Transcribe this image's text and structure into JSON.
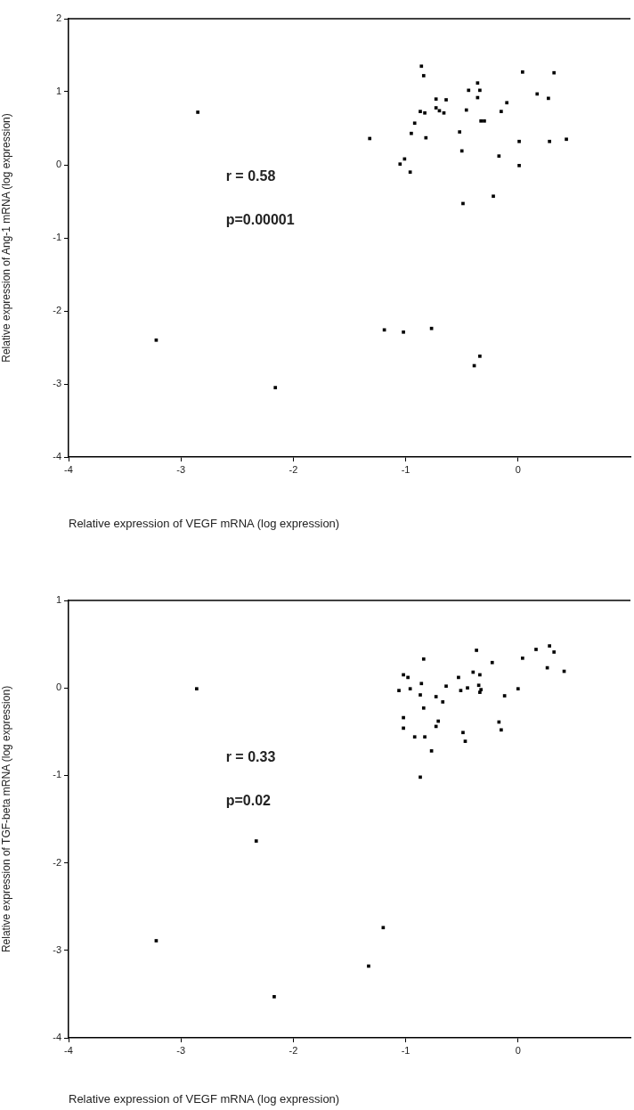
{
  "chart_data": [
    {
      "type": "scatter",
      "xlabel": "Relative expression of VEGF mRNA (log expression)",
      "ylabel": "Relative expression of Ang-1 mRNA (log expression)",
      "xlim": [
        -4,
        1
      ],
      "xticks": [
        -4,
        -3,
        -2,
        -1,
        0
      ],
      "ylim": [
        -4,
        2
      ],
      "yticks": [
        -4,
        -3,
        -2,
        -1,
        0,
        1,
        2
      ],
      "grid": false,
      "legend": false,
      "marker": "square",
      "annotations": [
        "r = 0.58",
        "p=0.00001"
      ],
      "series": [
        {
          "color": "#000000",
          "x": [
            -0.86,
            -0.84,
            -0.36,
            -0.44,
            -0.34,
            -0.36,
            0.04,
            0.32,
            0.17,
            0.27,
            -0.1,
            -0.15,
            -0.73,
            -0.64,
            -0.73,
            -0.7,
            -0.66,
            -0.87,
            -0.83,
            -0.46,
            -0.33,
            -0.3,
            -0.92,
            -0.95,
            -0.82,
            -1.32,
            -0.52,
            0.01,
            0.28,
            0.43,
            -0.5,
            -0.17,
            0.01,
            -1.01,
            -1.05,
            -0.96,
            -0.22,
            -0.49,
            -2.85,
            -3.22,
            -2.16,
            -1.19,
            -1.02,
            -0.77,
            -0.34,
            -0.39
          ],
          "values": [
            1.35,
            1.22,
            1.12,
            1.02,
            1.02,
            0.92,
            1.27,
            1.26,
            0.97,
            0.91,
            0.85,
            0.73,
            0.9,
            0.89,
            0.78,
            0.74,
            0.71,
            0.73,
            0.71,
            0.75,
            0.6,
            0.6,
            0.57,
            0.43,
            0.37,
            0.36,
            0.45,
            0.32,
            0.32,
            0.35,
            0.19,
            0.12,
            -0.01,
            0.08,
            0.01,
            -0.1,
            -0.43,
            -0.53,
            0.72,
            -2.4,
            -3.05,
            -2.26,
            -2.29,
            -2.24,
            -2.62,
            -2.75
          ]
        }
      ]
    },
    {
      "type": "scatter",
      "xlabel": "Relative expression of VEGF mRNA (log expression)",
      "ylabel": "Relative expression of TGF-beta mRNA (log expression)",
      "xlim": [
        -4,
        1
      ],
      "xticks": [
        -4,
        -3,
        -2,
        -1,
        0
      ],
      "ylim": [
        -4,
        1
      ],
      "yticks": [
        -4,
        -3,
        -2,
        -1,
        0,
        1
      ],
      "grid": false,
      "legend": false,
      "marker": "square",
      "annotations": [
        "r = 0.33",
        "p=0.02"
      ],
      "series": [
        {
          "color": "#000000",
          "x": [
            -0.37,
            -0.84,
            0.16,
            0.28,
            0.32,
            0.04,
            -0.23,
            0.26,
            0.41,
            -1.02,
            -0.98,
            -0.4,
            -0.34,
            -0.53,
            -0.86,
            -0.64,
            -0.45,
            -0.51,
            -0.35,
            -0.33,
            -0.34,
            -1.06,
            -0.96,
            -0.87,
            -0.73,
            -0.67,
            0.0,
            -0.12,
            -0.84,
            -1.02,
            -1.02,
            -0.71,
            -0.73,
            -0.92,
            -0.83,
            -0.77,
            -0.49,
            -0.47,
            -0.17,
            -0.15,
            -0.87,
            -1.2,
            -1.33,
            -2.17,
            -2.86,
            -3.22,
            -2.33
          ],
          "values": [
            0.43,
            0.33,
            0.44,
            0.48,
            0.41,
            0.34,
            0.29,
            0.23,
            0.19,
            0.15,
            0.12,
            0.18,
            0.15,
            0.12,
            0.05,
            0.02,
            0.0,
            -0.03,
            0.03,
            -0.02,
            -0.05,
            -0.03,
            -0.01,
            -0.08,
            -0.1,
            -0.16,
            -0.01,
            -0.09,
            -0.23,
            -0.34,
            -0.46,
            -0.38,
            -0.44,
            -0.56,
            -0.56,
            -0.72,
            -0.51,
            -0.61,
            -0.39,
            -0.48,
            -1.02,
            -2.74,
            -3.18,
            -3.53,
            -0.01,
            -2.89,
            -1.75
          ]
        }
      ]
    }
  ]
}
